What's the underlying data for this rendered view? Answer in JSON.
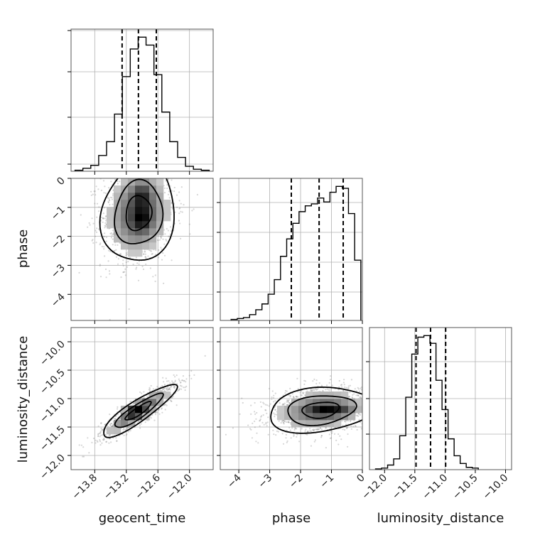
{
  "chart_data": [
    {
      "type": "histogram",
      "panel": "geocent_time marginal",
      "x": [
        -14.1,
        -13.95,
        -13.8,
        -13.65,
        -13.5,
        -13.35,
        -13.2,
        -13.05,
        -12.9,
        -12.75,
        -12.6,
        -12.45,
        -12.3,
        -12.15,
        -12.0,
        -11.85,
        -11.7
      ],
      "counts": [
        1,
        3,
        6,
        16,
        30,
        58,
        96,
        124,
        136,
        128,
        98,
        60,
        30,
        14,
        5,
        2,
        1
      ],
      "quantiles": [
        -13.28,
        -12.97,
        -12.63
      ],
      "xlim": [
        -14.25,
        -11.55
      ],
      "grid": true
    },
    {
      "type": "histogram",
      "panel": "phase marginal",
      "x": [
        -4.15,
        -3.95,
        -3.75,
        -3.55,
        -3.35,
        -3.15,
        -2.95,
        -2.75,
        -2.55,
        -2.35,
        -2.15,
        -1.95,
        -1.75,
        -1.55,
        -1.35,
        -1.15,
        -0.95,
        -0.75,
        -0.55,
        -0.35,
        -0.15
      ],
      "counts": [
        1,
        2,
        3,
        6,
        11,
        17,
        27,
        42,
        66,
        84,
        100,
        112,
        118,
        120,
        126,
        122,
        132,
        138,
        136,
        110,
        62
      ],
      "quantiles": [
        -2.3,
        -1.4,
        -0.62
      ],
      "xlim": [
        -4.6,
        0
      ],
      "grid": true
    },
    {
      "type": "histogram",
      "panel": "luminosity_distance marginal",
      "x": [
        -12.1,
        -12.0,
        -11.9,
        -11.8,
        -11.7,
        -11.6,
        -11.5,
        -11.4,
        -11.3,
        -11.2,
        -11.1,
        -11.0,
        -10.9,
        -10.8,
        -10.7,
        -10.6,
        -10.5
      ],
      "counts": [
        1,
        2,
        6,
        14,
        44,
        94,
        150,
        172,
        174,
        164,
        116,
        78,
        40,
        18,
        8,
        3,
        2
      ],
      "quantiles": [
        -11.48,
        -11.24,
        -10.99
      ],
      "xlim": [
        -12.25,
        -9.9
      ],
      "grid": true
    },
    {
      "type": "heatmap",
      "panel": "phase vs geocent_time",
      "xlim": [
        -14.25,
        -11.55
      ],
      "ylim": [
        -4.9,
        0
      ],
      "mean": [
        -12.97,
        -1.2
      ],
      "sd": [
        0.35,
        0.85
      ],
      "corr": 0.1,
      "peaks": [
        [
          -12.9,
          -0.55
        ],
        [
          -12.9,
          -1.4
        ]
      ]
    },
    {
      "type": "heatmap",
      "panel": "luminosity_distance vs geocent_time",
      "xlim": [
        -14.25,
        -11.55
      ],
      "ylim": [
        -12.25,
        -9.75
      ],
      "mean": [
        -12.97,
        -11.22
      ],
      "sd": [
        0.35,
        0.23
      ],
      "corr": 0.88,
      "peaks": [
        [
          -13.05,
          -11.2
        ]
      ]
    },
    {
      "type": "heatmap",
      "panel": "luminosity_distance vs phase",
      "xlim": [
        -4.6,
        0
      ],
      "ylim": [
        -12.25,
        -9.75
      ],
      "mean": [
        -1.35,
        -11.2
      ],
      "sd": [
        0.85,
        0.2
      ],
      "corr": 0.2,
      "peaks": [
        [
          -1.3,
          -11.2
        ],
        [
          -0.7,
          -11.2
        ]
      ]
    }
  ],
  "axes": {
    "geocent_time": {
      "label": "geocent_time",
      "ticks": [
        "−13.8",
        "−13.2",
        "−12.6",
        "−12.0"
      ],
      "tick_values": [
        -13.8,
        -13.2,
        -12.6,
        -12.0
      ]
    },
    "phase": {
      "label": "phase",
      "ticks": [
        "−4",
        "−3",
        "−2",
        "−1",
        "0"
      ],
      "tick_values": [
        -4,
        -3,
        -2,
        -1,
        0
      ]
    },
    "luminosity_distance": {
      "label": "luminosity_distance",
      "x_ticks": [
        "−12.0",
        "−11.5",
        "−11.0",
        "−10.5",
        "−10.0"
      ],
      "x_tick_values": [
        -12.0,
        -11.5,
        -11.0,
        -10.5,
        -10.0
      ],
      "y_ticks": [
        "−10.0",
        "−10.5",
        "−11.0",
        "−11.5",
        "−12.0"
      ],
      "y_tick_values": [
        -10.0,
        -10.5,
        -11.0,
        -11.5,
        -12.0
      ]
    },
    "phase_y": {
      "ticks": [
        "0",
        "−1",
        "−2",
        "−3",
        "−4"
      ],
      "tick_values": [
        0,
        -1,
        -2,
        -3,
        -4
      ]
    }
  },
  "colors": {
    "hist": "#000000",
    "grid": "#b0b0b0",
    "density": "#000000",
    "points": "#8a8a8a"
  }
}
